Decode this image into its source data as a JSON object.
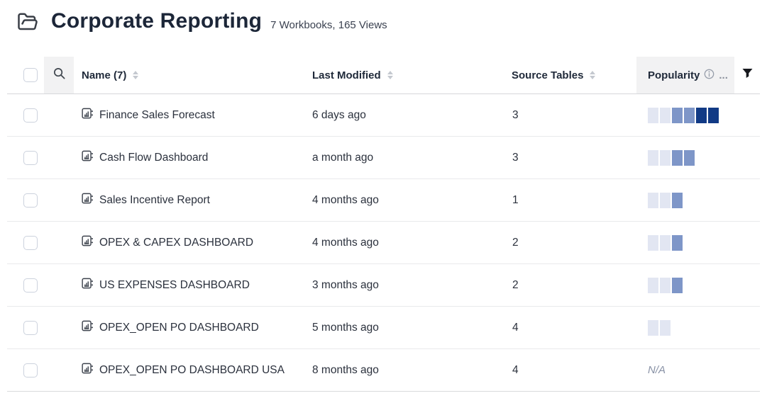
{
  "header": {
    "title": "Corporate Reporting",
    "subtitle": "7 Workbooks, 165 Views"
  },
  "table": {
    "columns": {
      "name": "Name (7)",
      "last_modified": "Last Modified",
      "source_tables": "Source Tables",
      "popularity": "Popularity",
      "popularity_suffix": "..."
    },
    "popularity_colors": {
      "light": "#e2e6f2",
      "medium": "#7e96c8",
      "dark": "#113a85"
    },
    "rows": [
      {
        "name": "Finance Sales Forecast",
        "last_modified": "6 days ago",
        "source_tables": "3",
        "popularity": [
          "light",
          "light",
          "medium",
          "medium",
          "dark",
          "dark"
        ]
      },
      {
        "name": "Cash Flow Dashboard",
        "last_modified": "a month ago",
        "source_tables": "3",
        "popularity": [
          "light",
          "light",
          "medium",
          "medium"
        ]
      },
      {
        "name": "Sales Incentive Report",
        "last_modified": "4 months ago",
        "source_tables": "1",
        "popularity": [
          "light",
          "light",
          "medium"
        ]
      },
      {
        "name": "OPEX & CAPEX DASHBOARD",
        "last_modified": "4 months ago",
        "source_tables": "2",
        "popularity": [
          "light",
          "light",
          "medium"
        ]
      },
      {
        "name": "US EXPENSES DASHBOARD",
        "last_modified": "3 months ago",
        "source_tables": "2",
        "popularity": [
          "light",
          "light",
          "medium"
        ]
      },
      {
        "name": "OPEX_OPEN PO DASHBOARD",
        "last_modified": "5 months ago",
        "source_tables": "4",
        "popularity": [
          "light",
          "light"
        ]
      },
      {
        "name": "OPEX_OPEN PO DASHBOARD USA",
        "last_modified": "8 months ago",
        "source_tables": "4",
        "popularity": "N/A"
      }
    ],
    "icons": {
      "folder": "open-folder-icon",
      "search": "search-icon",
      "info": "info-icon",
      "filter": "filter-funnel-icon",
      "workbook": "workbook-icon"
    }
  }
}
